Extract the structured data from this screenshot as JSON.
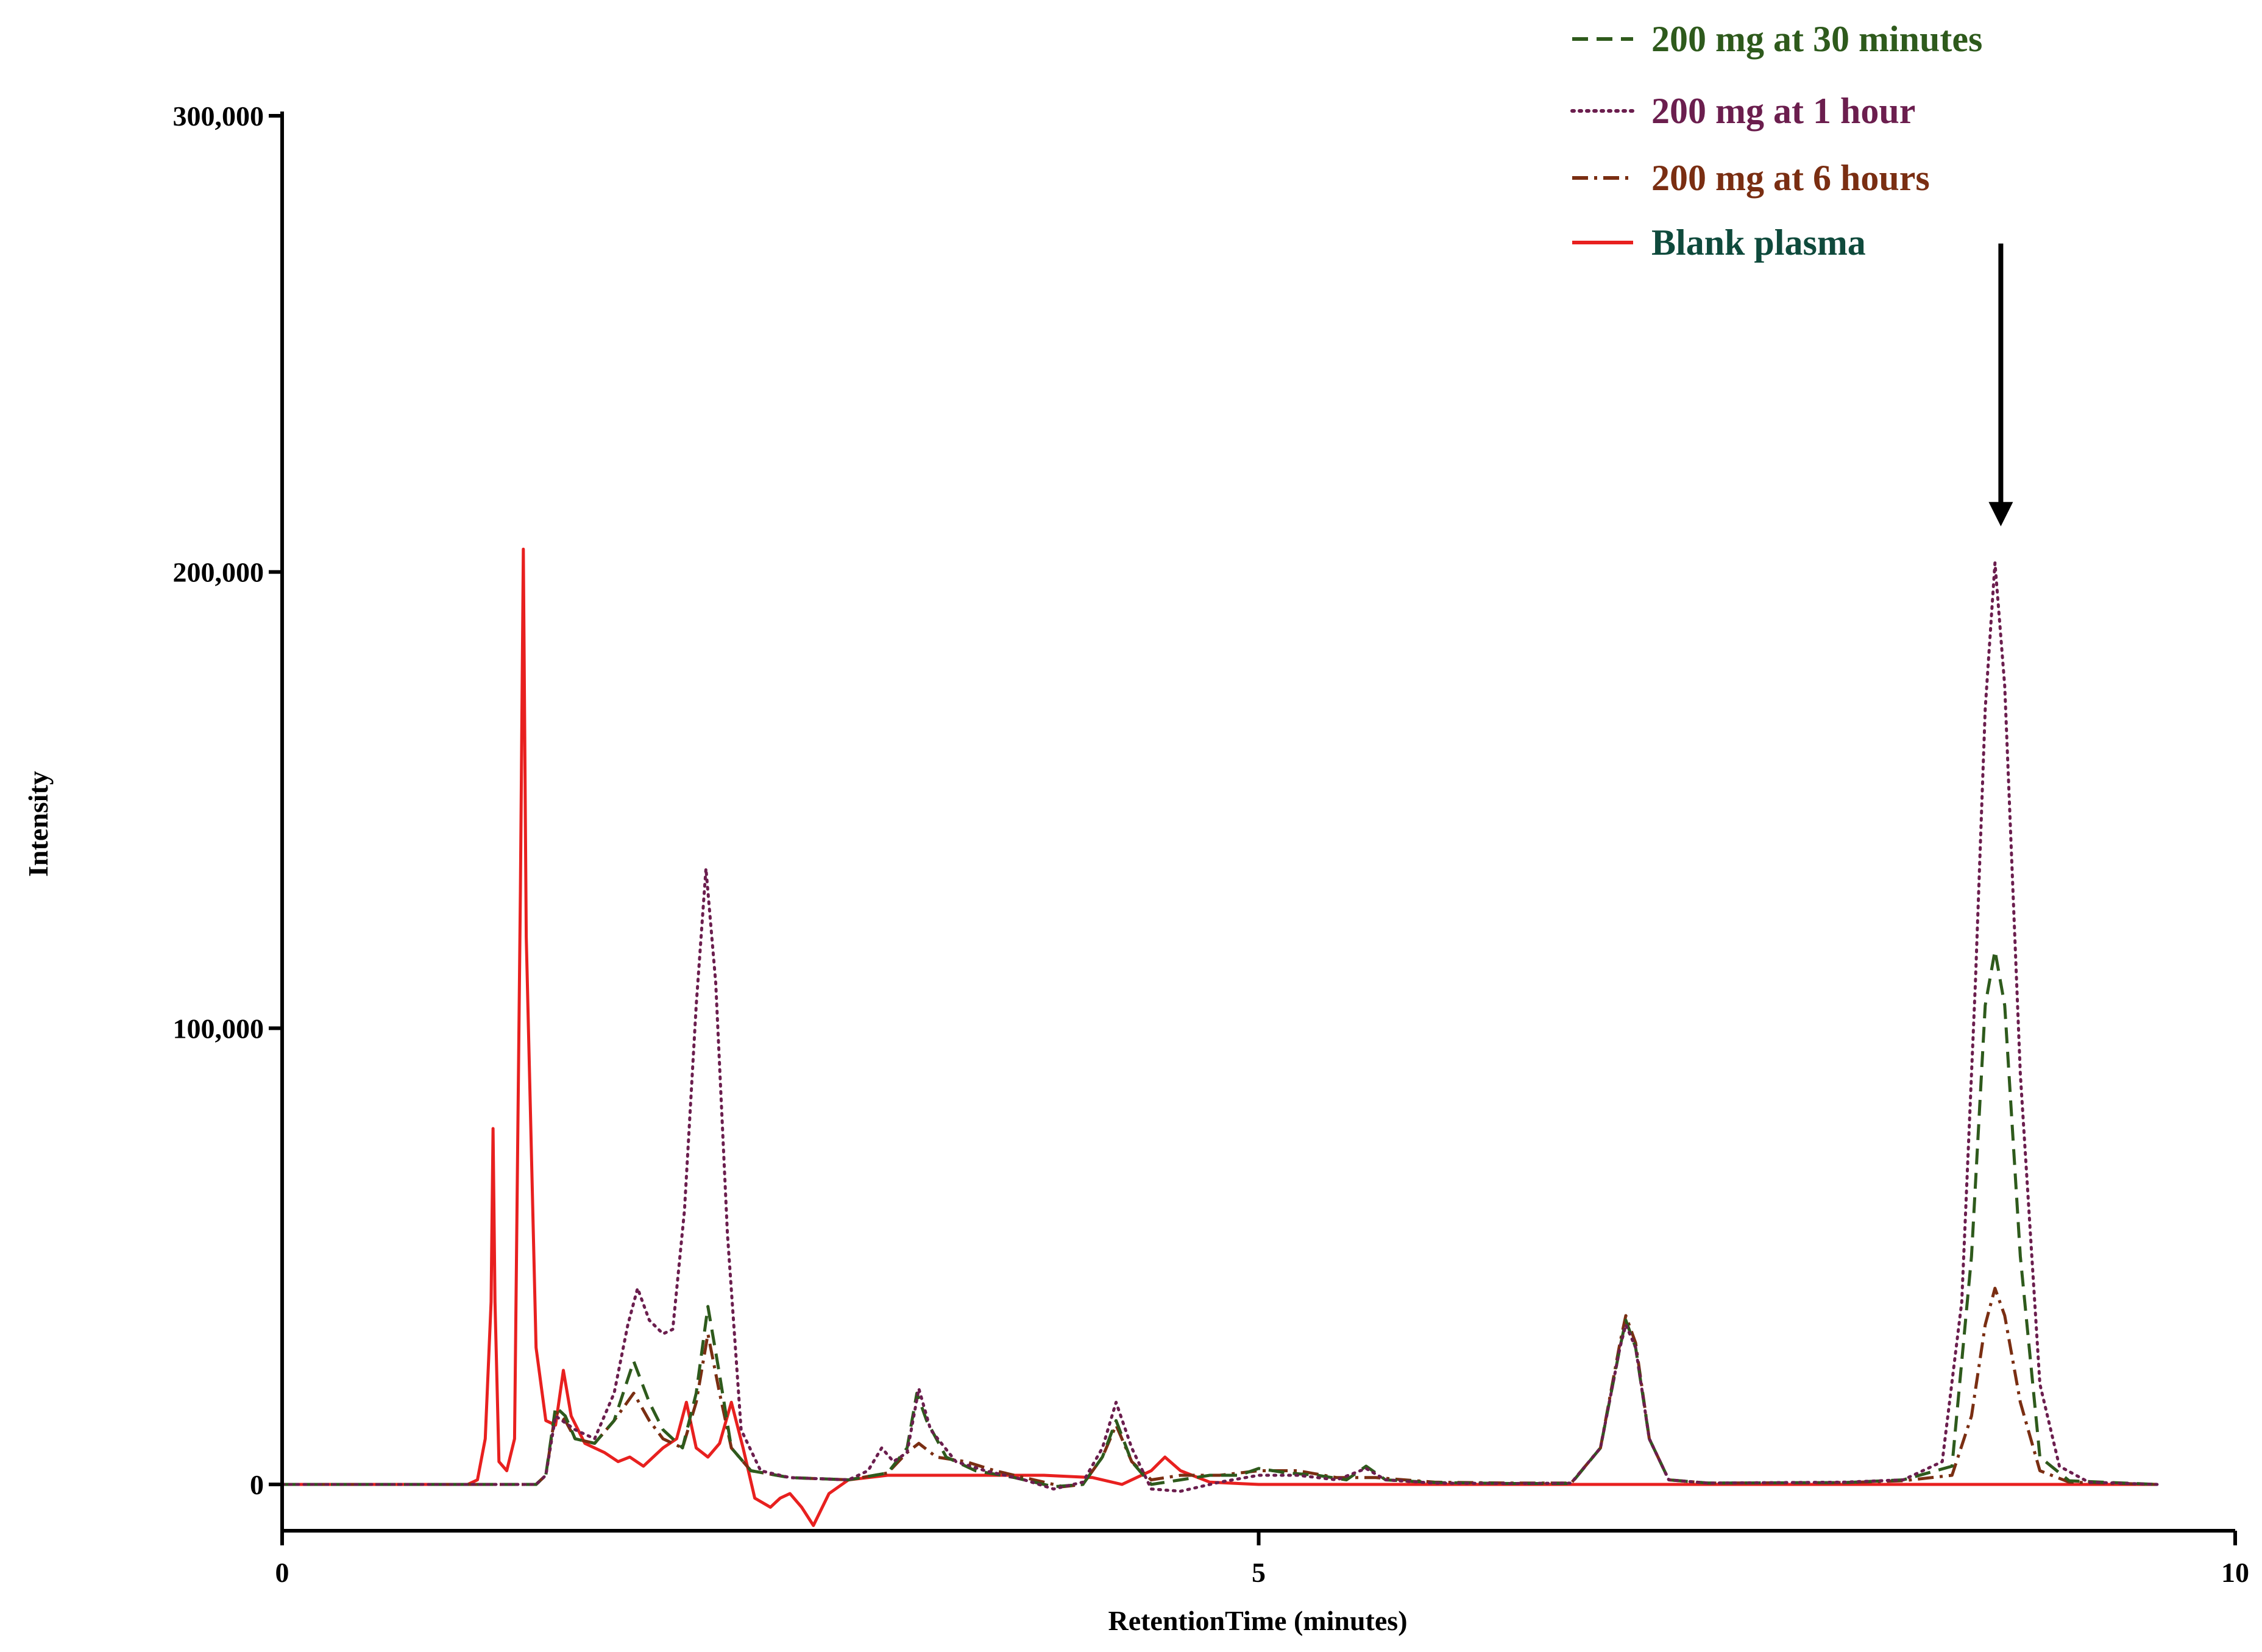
{
  "chart_data": {
    "type": "line",
    "xlabel": "RetentionTime (minutes)",
    "ylabel": "Intensity",
    "xlim": [
      0,
      10
    ],
    "ylim": [
      -10000,
      300000
    ],
    "xticks": [
      0,
      5,
      10
    ],
    "xtick_labels": [
      "0",
      "5",
      "10"
    ],
    "yticks": [
      0,
      100000,
      200000,
      300000
    ],
    "ytick_labels": [
      "0",
      "100,000",
      "200,000",
      "300,000"
    ],
    "grid": false,
    "legend_position": "top-right",
    "annotations": [
      {
        "type": "arrow",
        "x": 8.8,
        "y_from": 272000,
        "y_to": 210000,
        "direction": "down"
      }
    ],
    "series": [
      {
        "name": "200 mg at 30 minutes",
        "color": "#2e5a1c",
        "dash": "dashed",
        "points": [
          [
            0,
            0
          ],
          [
            1.3,
            0
          ],
          [
            1.35,
            2000
          ],
          [
            1.4,
            17000
          ],
          [
            1.45,
            15000
          ],
          [
            1.5,
            10000
          ],
          [
            1.6,
            9000
          ],
          [
            1.7,
            14000
          ],
          [
            1.8,
            27000
          ],
          [
            1.88,
            18000
          ],
          [
            1.95,
            12000
          ],
          [
            2.05,
            8000
          ],
          [
            2.12,
            20000
          ],
          [
            2.18,
            39000
          ],
          [
            2.24,
            24000
          ],
          [
            2.3,
            8000
          ],
          [
            2.4,
            3000
          ],
          [
            2.6,
            1500
          ],
          [
            2.9,
            1000
          ],
          [
            3.1,
            2500
          ],
          [
            3.2,
            8000
          ],
          [
            3.25,
            20000
          ],
          [
            3.3,
            14000
          ],
          [
            3.4,
            6000
          ],
          [
            3.55,
            3000
          ],
          [
            3.75,
            1500
          ],
          [
            3.95,
            -500
          ],
          [
            4.1,
            0
          ],
          [
            4.2,
            6000
          ],
          [
            4.27,
            14000
          ],
          [
            4.35,
            5000
          ],
          [
            4.45,
            0
          ],
          [
            4.6,
            1000
          ],
          [
            4.75,
            2000
          ],
          [
            4.9,
            2000
          ],
          [
            5.0,
            3500
          ],
          [
            5.15,
            2500
          ],
          [
            5.3,
            2000
          ],
          [
            5.45,
            1000
          ],
          [
            5.55,
            4000
          ],
          [
            5.65,
            1000
          ],
          [
            5.9,
            400
          ],
          [
            6.3,
            200
          ],
          [
            6.6,
            200
          ],
          [
            6.75,
            8000
          ],
          [
            6.85,
            30000
          ],
          [
            6.88,
            36000
          ],
          [
            6.93,
            30000
          ],
          [
            7.0,
            10000
          ],
          [
            7.1,
            1000
          ],
          [
            7.3,
            300
          ],
          [
            8.0,
            400
          ],
          [
            8.3,
            1000
          ],
          [
            8.55,
            4000
          ],
          [
            8.65,
            50000
          ],
          [
            8.72,
            105000
          ],
          [
            8.77,
            117000
          ],
          [
            8.82,
            105000
          ],
          [
            8.9,
            50000
          ],
          [
            9.0,
            6000
          ],
          [
            9.15,
            800
          ],
          [
            9.6,
            0
          ]
        ]
      },
      {
        "name": "200 mg at 1 hour",
        "color": "#6b1e4e",
        "dash": "dotted",
        "points": [
          [
            0,
            0
          ],
          [
            1.3,
            0
          ],
          [
            1.35,
            2000
          ],
          [
            1.4,
            15000
          ],
          [
            1.5,
            12000
          ],
          [
            1.6,
            10000
          ],
          [
            1.7,
            20000
          ],
          [
            1.77,
            35000
          ],
          [
            1.82,
            43000
          ],
          [
            1.88,
            36000
          ],
          [
            1.95,
            33000
          ],
          [
            2.0,
            34000
          ],
          [
            2.06,
            60000
          ],
          [
            2.12,
            105000
          ],
          [
            2.17,
            135000
          ],
          [
            2.22,
            110000
          ],
          [
            2.28,
            55000
          ],
          [
            2.35,
            12000
          ],
          [
            2.45,
            3000
          ],
          [
            2.6,
            1500
          ],
          [
            2.9,
            1000
          ],
          [
            3.0,
            3000
          ],
          [
            3.07,
            8000
          ],
          [
            3.13,
            5000
          ],
          [
            3.2,
            7000
          ],
          [
            3.26,
            21000
          ],
          [
            3.32,
            12000
          ],
          [
            3.45,
            5000
          ],
          [
            3.6,
            3000
          ],
          [
            3.8,
            1000
          ],
          [
            3.95,
            -1000
          ],
          [
            4.1,
            500
          ],
          [
            4.2,
            8000
          ],
          [
            4.27,
            18000
          ],
          [
            4.35,
            8000
          ],
          [
            4.45,
            -1000
          ],
          [
            4.6,
            -1500
          ],
          [
            4.8,
            500
          ],
          [
            5.0,
            2000
          ],
          [
            5.2,
            2000
          ],
          [
            5.4,
            1000
          ],
          [
            5.55,
            3500
          ],
          [
            5.65,
            1000
          ],
          [
            5.9,
            300
          ],
          [
            6.3,
            200
          ],
          [
            6.6,
            300
          ],
          [
            6.75,
            8000
          ],
          [
            6.85,
            30000
          ],
          [
            6.88,
            35000
          ],
          [
            6.93,
            30000
          ],
          [
            7.0,
            10000
          ],
          [
            7.1,
            1000
          ],
          [
            7.3,
            300
          ],
          [
            8.0,
            500
          ],
          [
            8.3,
            1000
          ],
          [
            8.5,
            5000
          ],
          [
            8.6,
            40000
          ],
          [
            8.67,
            110000
          ],
          [
            8.72,
            170000
          ],
          [
            8.77,
            202000
          ],
          [
            8.82,
            175000
          ],
          [
            8.9,
            90000
          ],
          [
            9.0,
            22000
          ],
          [
            9.1,
            4000
          ],
          [
            9.25,
            500
          ],
          [
            9.6,
            0
          ]
        ]
      },
      {
        "name": "200 mg at 6 hours",
        "color": "#7a2e12",
        "dash": "dashdot",
        "points": [
          [
            0,
            0
          ],
          [
            1.3,
            0
          ],
          [
            1.35,
            2000
          ],
          [
            1.4,
            16000
          ],
          [
            1.45,
            14000
          ],
          [
            1.5,
            10000
          ],
          [
            1.6,
            9000
          ],
          [
            1.7,
            14000
          ],
          [
            1.8,
            20000
          ],
          [
            1.88,
            14000
          ],
          [
            1.95,
            10000
          ],
          [
            2.05,
            8000
          ],
          [
            2.12,
            18000
          ],
          [
            2.18,
            33000
          ],
          [
            2.24,
            20000
          ],
          [
            2.3,
            8000
          ],
          [
            2.4,
            3000
          ],
          [
            2.6,
            1500
          ],
          [
            2.9,
            1000
          ],
          [
            3.1,
            2500
          ],
          [
            3.2,
            7000
          ],
          [
            3.26,
            9000
          ],
          [
            3.35,
            6000
          ],
          [
            3.5,
            5000
          ],
          [
            3.65,
            3000
          ],
          [
            3.85,
            1000
          ],
          [
            4.0,
            -500
          ],
          [
            4.1,
            0
          ],
          [
            4.2,
            6000
          ],
          [
            4.27,
            13000
          ],
          [
            4.35,
            5000
          ],
          [
            4.45,
            1000
          ],
          [
            4.6,
            2000
          ],
          [
            4.8,
            2000
          ],
          [
            5.0,
            3000
          ],
          [
            5.2,
            3000
          ],
          [
            5.4,
            1500
          ],
          [
            5.6,
            1500
          ],
          [
            5.9,
            500
          ],
          [
            6.3,
            300
          ],
          [
            6.6,
            300
          ],
          [
            6.75,
            8000
          ],
          [
            6.85,
            31000
          ],
          [
            6.88,
            37000
          ],
          [
            6.93,
            31000
          ],
          [
            7.0,
            10000
          ],
          [
            7.1,
            1000
          ],
          [
            7.3,
            300
          ],
          [
            8.0,
            400
          ],
          [
            8.3,
            800
          ],
          [
            8.55,
            2000
          ],
          [
            8.65,
            15000
          ],
          [
            8.72,
            35000
          ],
          [
            8.77,
            43000
          ],
          [
            8.82,
            37000
          ],
          [
            8.9,
            18000
          ],
          [
            9.0,
            3000
          ],
          [
            9.15,
            500
          ],
          [
            9.6,
            0
          ]
        ]
      },
      {
        "name": "Blank plasma",
        "color": "#e8201f",
        "dash": "solid",
        "points": [
          [
            0,
            0
          ],
          [
            0.95,
            0
          ],
          [
            1.0,
            1000
          ],
          [
            1.04,
            10000
          ],
          [
            1.07,
            40000
          ],
          [
            1.08,
            78000
          ],
          [
            1.09,
            40000
          ],
          [
            1.11,
            5000
          ],
          [
            1.15,
            3000
          ],
          [
            1.19,
            10000
          ],
          [
            1.22,
            130000
          ],
          [
            1.235,
            205000
          ],
          [
            1.25,
            120000
          ],
          [
            1.3,
            30000
          ],
          [
            1.35,
            14000
          ],
          [
            1.4,
            13000
          ],
          [
            1.44,
            25000
          ],
          [
            1.48,
            15000
          ],
          [
            1.55,
            9000
          ],
          [
            1.65,
            7000
          ],
          [
            1.72,
            5000
          ],
          [
            1.78,
            6000
          ],
          [
            1.85,
            4000
          ],
          [
            1.95,
            8000
          ],
          [
            2.02,
            10000
          ],
          [
            2.07,
            18000
          ],
          [
            2.12,
            8000
          ],
          [
            2.18,
            6000
          ],
          [
            2.24,
            9000
          ],
          [
            2.3,
            18000
          ],
          [
            2.36,
            8000
          ],
          [
            2.42,
            -3000
          ],
          [
            2.5,
            -5000
          ],
          [
            2.55,
            -3000
          ],
          [
            2.6,
            -2000
          ],
          [
            2.66,
            -5000
          ],
          [
            2.72,
            -9000
          ],
          [
            2.8,
            -2000
          ],
          [
            2.9,
            1000
          ],
          [
            3.1,
            2000
          ],
          [
            3.5,
            2000
          ],
          [
            3.9,
            2000
          ],
          [
            4.15,
            1500
          ],
          [
            4.3,
            0
          ],
          [
            4.45,
            3000
          ],
          [
            4.52,
            6000
          ],
          [
            4.6,
            3000
          ],
          [
            4.75,
            500
          ],
          [
            5.0,
            0
          ],
          [
            6.3,
            0
          ],
          [
            7.5,
            0
          ],
          [
            8.5,
            0
          ],
          [
            9.6,
            0
          ]
        ]
      }
    ]
  }
}
